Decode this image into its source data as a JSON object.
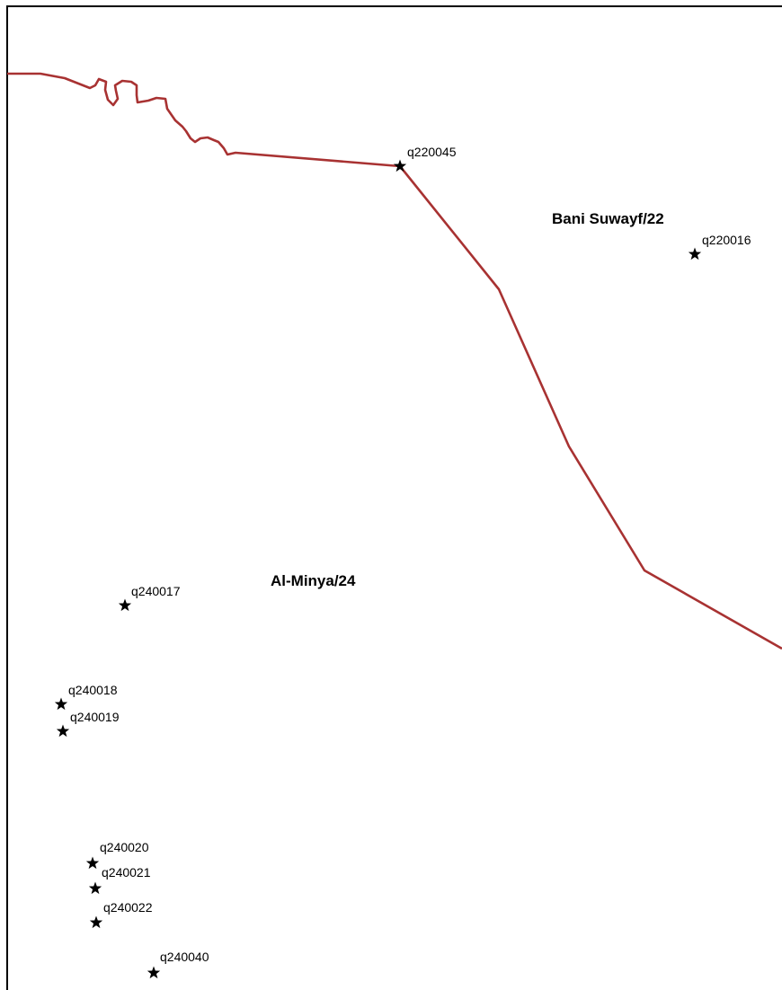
{
  "map": {
    "colors": {
      "boundary": "#a83232",
      "frame": "#000000",
      "marker": "#000000",
      "background": "#ffffff"
    },
    "marker_icon": "star-icon",
    "regions": [
      {
        "id": "bani-suwayf",
        "label": "Bani Suwayf/22"
      },
      {
        "id": "al-minya",
        "label": "Al-Minya/24"
      }
    ],
    "sites": [
      {
        "id": "q220045",
        "label": "q220045"
      },
      {
        "id": "q220016",
        "label": "q220016"
      },
      {
        "id": "q240017",
        "label": "q240017"
      },
      {
        "id": "q240018",
        "label": "q240018"
      },
      {
        "id": "q240019",
        "label": "q240019"
      },
      {
        "id": "q240020",
        "label": "q240020"
      },
      {
        "id": "q240021",
        "label": "q240021"
      },
      {
        "id": "q240022",
        "label": "q240022"
      },
      {
        "id": "q240040",
        "label": "q240040"
      }
    ]
  }
}
